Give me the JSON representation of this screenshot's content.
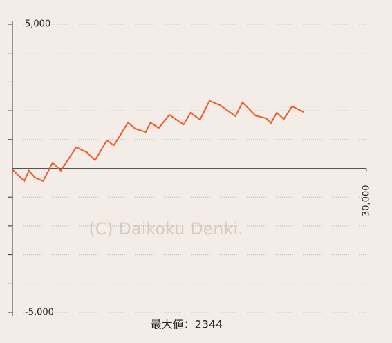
{
  "chart_data": {
    "type": "line",
    "x": [
      0,
      1000,
      1400,
      1900,
      2600,
      3400,
      4100,
      5400,
      6300,
      7000,
      8000,
      8600,
      9800,
      10400,
      11300,
      11700,
      12400,
      13300,
      14500,
      15100,
      15900,
      16700,
      17600,
      18900,
      19500,
      20600,
      21500,
      21900,
      22400,
      23000,
      23700,
      24700
    ],
    "series": [
      {
        "color": "#f05a28",
        "values": [
          -40,
          -440,
          -80,
          -320,
          -440,
          200,
          -80,
          730,
          560,
          280,
          970,
          800,
          1590,
          1380,
          1260,
          1590,
          1400,
          1860,
          1520,
          1930,
          1690,
          2344,
          2190,
          1810,
          2290,
          1830,
          1740,
          1570,
          1930,
          1710,
          2150,
          1950
        ]
      }
    ],
    "xlim": [
      0,
      30000
    ],
    "xticks": [
      {
        "value": 30000,
        "label": "30,000"
      }
    ],
    "ylim": [
      -5000,
      5000
    ],
    "yticks": [
      {
        "value": -5000,
        "label": "-5,000"
      },
      {
        "value": 5000,
        "label": "5,000"
      }
    ],
    "minor_yticks": [
      -4000,
      -3000,
      -2000,
      -1000,
      1000,
      2000,
      3000,
      4000
    ],
    "grid": true,
    "watermark": "(C) Daikoku Denki.",
    "max_label": "最大値：2344"
  }
}
